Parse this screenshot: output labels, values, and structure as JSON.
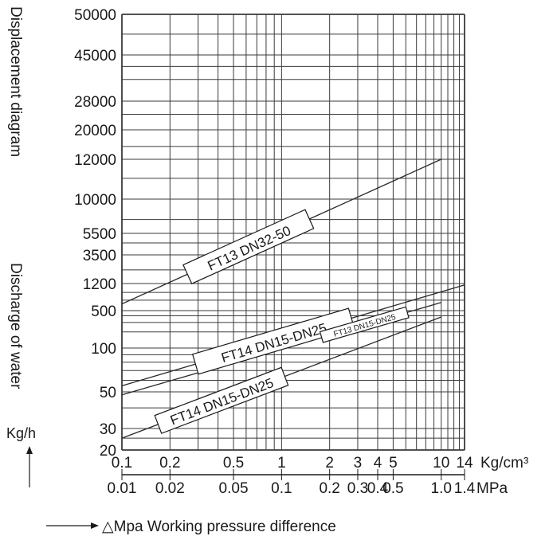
{
  "chart_data": {
    "type": "line",
    "title": "",
    "ylabel_top": "Displacement diagram",
    "ylabel_bottom": "Discharge of water",
    "yunit": "Kg/h",
    "xlabel": "△Mpa Working pressure difference",
    "x_units": [
      "Kg/cm³",
      "MPa"
    ],
    "grid": true,
    "legend": "none",
    "x_ticks_kgcm": [
      "0.1",
      "0.2",
      "0.5",
      "1",
      "2",
      "3",
      "4",
      "5",
      "10",
      "14"
    ],
    "x_ticks_mpa": [
      "0.01",
      "0.02",
      "0.05",
      "0.1",
      "0.2",
      "0.3",
      "0.4",
      "0.5",
      "1.0",
      "1.4"
    ],
    "y_ticks": [
      "20",
      "30",
      "50",
      "100",
      "500",
      "1200",
      "3500",
      "5500",
      "10000",
      "12000",
      "20000",
      "28000",
      "45000",
      "50000"
    ],
    "series": [
      {
        "name": "FT13 DN32-50",
        "x": [
          0.1,
          10
        ],
        "y": [
          620,
          12000
        ]
      },
      {
        "name": "FT14 DN15-DN25",
        "x": [
          0.1,
          14
        ],
        "y": [
          55,
          1150
        ]
      },
      {
        "name": "FT13 DN15-DN25",
        "x": [
          0.1,
          10
        ],
        "y": [
          48,
          650
        ]
      },
      {
        "name": "FT14 DN15-DN25",
        "x": [
          0.1,
          10
        ],
        "y": [
          25,
          380
        ]
      }
    ],
    "line_color": "#2a2a2a",
    "grid_color": "#3a3a3a"
  }
}
